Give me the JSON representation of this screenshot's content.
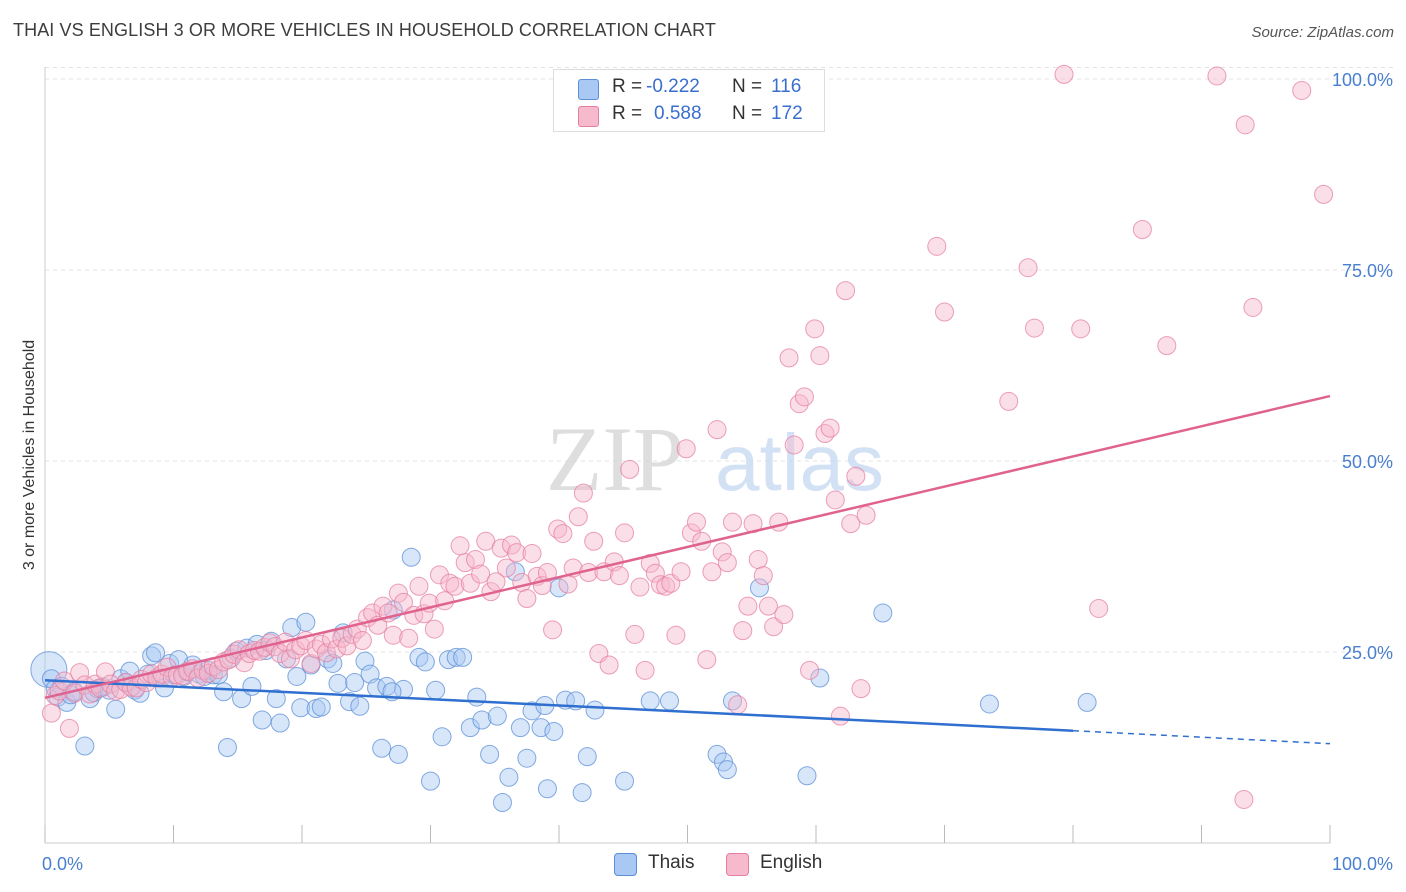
{
  "title": "THAI VS ENGLISH 3 OR MORE VEHICLES IN HOUSEHOLD CORRELATION CHART",
  "source": "Source: ZipAtlas.com",
  "watermark": {
    "zip": "ZIP",
    "atlas": "atlas"
  },
  "legend": {
    "rows": [
      {
        "r_label": "R =",
        "r_value": "-0.222",
        "n_label": "N =",
        "n_value": "116",
        "color": "#a9c8f3"
      },
      {
        "r_label": "R =",
        "r_value": "0.588",
        "n_label": "N =",
        "n_value": "172",
        "color": "#f7b9cc"
      }
    ]
  },
  "bottom_legend": [
    {
      "label": "Thais",
      "color": "#a9c8f3"
    },
    {
      "label": "English",
      "color": "#f7b9cc"
    }
  ],
  "colors": {
    "thais_fill": "#a9c8f3",
    "thais_stroke": "#5b8fd6",
    "thais_line": "#2f6fd0",
    "english_fill": "#f7b9cc",
    "english_stroke": "#e57fa0",
    "english_line": "#e0628e",
    "tick_label": "#4a7fd0",
    "grid": "#e3e3e3"
  },
  "chart_data": {
    "type": "scatter",
    "title": "THAI VS ENGLISH 3 OR MORE VEHICLES IN HOUSEHOLD CORRELATION CHART",
    "xlabel": "",
    "ylabel": "3 or more Vehicles in Household",
    "xlim": [
      0,
      100
    ],
    "ylim": [
      0,
      102
    ],
    "x_tick_labels": [
      "0.0%",
      "100.0%"
    ],
    "y_tick_labels": [
      "25.0%",
      "50.0%",
      "75.0%",
      "100.0%"
    ],
    "y_ticks": [
      25,
      50,
      75,
      100
    ],
    "grid": true,
    "series": [
      {
        "name": "Thais",
        "r": -0.222,
        "n": 116,
        "trend": {
          "x0": 0,
          "y0": 21.3,
          "x1": 80,
          "y1": 14.7,
          "dashed_to_x": 100,
          "dashed_to_y": 13.0
        },
        "points": [
          [
            0.3,
            22.7
          ],
          [
            0.5,
            21.5
          ],
          [
            0.8,
            20.2
          ],
          [
            1.0,
            19.1
          ],
          [
            1.3,
            20.5
          ],
          [
            1.7,
            18.4
          ],
          [
            2.0,
            19.4
          ],
          [
            2.3,
            19.8
          ],
          [
            3.1,
            12.7
          ],
          [
            3.5,
            18.9
          ],
          [
            3.8,
            19.7
          ],
          [
            4.1,
            20.2
          ],
          [
            4.5,
            20.4
          ],
          [
            5.0,
            20.0
          ],
          [
            5.5,
            17.5
          ],
          [
            5.9,
            21.5
          ],
          [
            6.3,
            21.0
          ],
          [
            6.6,
            22.5
          ],
          [
            7.0,
            20.0
          ],
          [
            7.4,
            19.6
          ],
          [
            8.0,
            22.1
          ],
          [
            8.3,
            24.5
          ],
          [
            8.6,
            24.9
          ],
          [
            9.0,
            21.6
          ],
          [
            9.3,
            20.3
          ],
          [
            9.7,
            23.5
          ],
          [
            10.1,
            22.0
          ],
          [
            10.4,
            24.0
          ],
          [
            10.8,
            21.8
          ],
          [
            11.1,
            22.4
          ],
          [
            11.5,
            23.3
          ],
          [
            12.0,
            22.1
          ],
          [
            12.4,
            21.8
          ],
          [
            12.7,
            22.6
          ],
          [
            13.1,
            22.0
          ],
          [
            13.5,
            22.0
          ],
          [
            13.9,
            19.8
          ],
          [
            14.2,
            12.5
          ],
          [
            14.5,
            24.2
          ],
          [
            14.9,
            25.1
          ],
          [
            15.3,
            18.9
          ],
          [
            15.7,
            25.5
          ],
          [
            16.1,
            20.5
          ],
          [
            16.5,
            26.0
          ],
          [
            16.9,
            16.1
          ],
          [
            17.2,
            25.2
          ],
          [
            17.6,
            26.4
          ],
          [
            18.0,
            18.9
          ],
          [
            18.3,
            15.7
          ],
          [
            18.8,
            24.1
          ],
          [
            19.2,
            28.2
          ],
          [
            19.6,
            21.8
          ],
          [
            19.9,
            17.7
          ],
          [
            20.3,
            28.9
          ],
          [
            20.7,
            23.3
          ],
          [
            21.1,
            17.6
          ],
          [
            21.5,
            17.8
          ],
          [
            22.0,
            24.1
          ],
          [
            22.4,
            23.5
          ],
          [
            22.8,
            20.9
          ],
          [
            23.2,
            27.5
          ],
          [
            23.7,
            18.5
          ],
          [
            24.1,
            21.0
          ],
          [
            24.5,
            17.9
          ],
          [
            24.9,
            23.8
          ],
          [
            25.3,
            22.1
          ],
          [
            25.8,
            20.3
          ],
          [
            26.2,
            12.4
          ],
          [
            26.6,
            20.5
          ],
          [
            27.1,
            30.5
          ],
          [
            27.5,
            11.6
          ],
          [
            27.9,
            20.1
          ],
          [
            28.5,
            37.4
          ],
          [
            29.1,
            24.3
          ],
          [
            29.6,
            23.7
          ],
          [
            30.0,
            8.1
          ],
          [
            30.4,
            20.0
          ],
          [
            30.9,
            13.9
          ],
          [
            31.4,
            24.0
          ],
          [
            32.0,
            24.3
          ],
          [
            32.5,
            24.3
          ],
          [
            33.1,
            15.1
          ],
          [
            33.6,
            19.1
          ],
          [
            34.0,
            16.1
          ],
          [
            34.6,
            11.6
          ],
          [
            35.2,
            16.6
          ],
          [
            35.6,
            5.3
          ],
          [
            36.1,
            8.6
          ],
          [
            36.6,
            35.5
          ],
          [
            37.0,
            15.1
          ],
          [
            37.5,
            11.1
          ],
          [
            37.9,
            17.3
          ],
          [
            38.6,
            15.1
          ],
          [
            39.1,
            7.1
          ],
          [
            39.6,
            14.6
          ],
          [
            40.0,
            33.4
          ],
          [
            40.5,
            18.7
          ],
          [
            41.3,
            18.6
          ],
          [
            41.8,
            6.6
          ],
          [
            42.2,
            11.3
          ],
          [
            42.8,
            17.4
          ],
          [
            45.1,
            8.1
          ],
          [
            47.1,
            18.6
          ],
          [
            48.6,
            18.6
          ],
          [
            52.3,
            11.6
          ],
          [
            52.8,
            10.6
          ],
          [
            53.1,
            9.6
          ],
          [
            53.5,
            18.6
          ],
          [
            55.6,
            33.4
          ],
          [
            59.3,
            8.8
          ],
          [
            60.3,
            21.6
          ],
          [
            65.2,
            30.1
          ],
          [
            81.1,
            18.4
          ],
          [
            73.5,
            18.2
          ],
          [
            38.9,
            18.0
          ],
          [
            27.0,
            19.8
          ]
        ]
      },
      {
        "name": "English",
        "r": 0.588,
        "n": 172,
        "trend": {
          "x0": 0,
          "y0": 19.0,
          "x1": 100,
          "y1": 58.5
        },
        "points": [
          [
            0.5,
            17.0
          ],
          [
            0.8,
            19.3
          ],
          [
            1.1,
            19.9
          ],
          [
            1.5,
            21.2
          ],
          [
            1.9,
            15.0
          ],
          [
            2.3,
            19.6
          ],
          [
            2.7,
            22.3
          ],
          [
            3.1,
            20.7
          ],
          [
            3.5,
            19.5
          ],
          [
            3.9,
            20.8
          ],
          [
            4.3,
            20.3
          ],
          [
            4.7,
            22.4
          ],
          [
            5.1,
            20.8
          ],
          [
            5.5,
            19.9
          ],
          [
            5.9,
            20.1
          ],
          [
            6.3,
            21.0
          ],
          [
            6.7,
            20.4
          ],
          [
            7.1,
            20.3
          ],
          [
            7.5,
            21.4
          ],
          [
            7.9,
            21.0
          ],
          [
            8.3,
            22.1
          ],
          [
            8.7,
            21.6
          ],
          [
            9.1,
            22.1
          ],
          [
            9.5,
            23.0
          ],
          [
            9.9,
            21.7
          ],
          [
            10.3,
            22.0
          ],
          [
            10.7,
            21.9
          ],
          [
            11.1,
            22.5
          ],
          [
            11.5,
            22.8
          ],
          [
            11.9,
            21.6
          ],
          [
            12.3,
            22.6
          ],
          [
            12.7,
            22.2
          ],
          [
            13.1,
            23.1
          ],
          [
            13.5,
            22.7
          ],
          [
            13.9,
            23.7
          ],
          [
            14.3,
            24.0
          ],
          [
            14.7,
            24.7
          ],
          [
            15.1,
            25.3
          ],
          [
            15.5,
            23.6
          ],
          [
            15.9,
            24.8
          ],
          [
            16.3,
            25.2
          ],
          [
            16.7,
            25.1
          ],
          [
            17.1,
            25.6
          ],
          [
            17.5,
            26.2
          ],
          [
            17.9,
            25.7
          ],
          [
            18.3,
            24.8
          ],
          [
            18.7,
            26.3
          ],
          [
            19.1,
            24.1
          ],
          [
            19.5,
            25.3
          ],
          [
            19.9,
            25.8
          ],
          [
            20.3,
            26.5
          ],
          [
            20.7,
            23.5
          ],
          [
            21.1,
            25.4
          ],
          [
            21.5,
            26.0
          ],
          [
            21.9,
            24.9
          ],
          [
            22.3,
            26.7
          ],
          [
            22.7,
            25.4
          ],
          [
            23.1,
            26.8
          ],
          [
            23.5,
            25.8
          ],
          [
            23.9,
            27.3
          ],
          [
            24.3,
            28.0
          ],
          [
            24.7,
            26.5
          ],
          [
            25.1,
            29.5
          ],
          [
            25.5,
            30.1
          ],
          [
            25.9,
            28.5
          ],
          [
            26.3,
            31.0
          ],
          [
            26.7,
            30.1
          ],
          [
            27.1,
            27.2
          ],
          [
            27.5,
            32.7
          ],
          [
            27.9,
            31.5
          ],
          [
            28.3,
            26.8
          ],
          [
            28.7,
            29.8
          ],
          [
            29.1,
            33.6
          ],
          [
            29.5,
            30.0
          ],
          [
            29.9,
            31.4
          ],
          [
            30.3,
            28.0
          ],
          [
            30.7,
            35.1
          ],
          [
            31.1,
            31.7
          ],
          [
            31.5,
            34.0
          ],
          [
            31.9,
            33.6
          ],
          [
            32.3,
            38.9
          ],
          [
            32.7,
            36.7
          ],
          [
            33.1,
            34.0
          ],
          [
            33.5,
            37.1
          ],
          [
            33.9,
            35.2
          ],
          [
            34.3,
            39.5
          ],
          [
            34.7,
            32.9
          ],
          [
            35.1,
            34.2
          ],
          [
            35.5,
            38.6
          ],
          [
            35.9,
            36.0
          ],
          [
            36.3,
            39.0
          ],
          [
            36.7,
            38.0
          ],
          [
            37.1,
            34.1
          ],
          [
            37.5,
            32.0
          ],
          [
            37.9,
            37.9
          ],
          [
            38.3,
            34.9
          ],
          [
            38.7,
            33.7
          ],
          [
            39.1,
            35.4
          ],
          [
            39.5,
            27.9
          ],
          [
            39.9,
            41.1
          ],
          [
            40.3,
            40.5
          ],
          [
            40.7,
            33.9
          ],
          [
            41.1,
            36.0
          ],
          [
            41.5,
            42.7
          ],
          [
            41.9,
            45.8
          ],
          [
            42.3,
            35.4
          ],
          [
            42.7,
            39.5
          ],
          [
            43.1,
            24.8
          ],
          [
            43.5,
            35.5
          ],
          [
            43.9,
            23.3
          ],
          [
            44.3,
            36.8
          ],
          [
            44.7,
            35.0
          ],
          [
            45.1,
            40.6
          ],
          [
            45.5,
            48.9
          ],
          [
            45.9,
            27.3
          ],
          [
            46.3,
            33.5
          ],
          [
            46.7,
            22.6
          ],
          [
            47.1,
            36.6
          ],
          [
            47.5,
            35.3
          ],
          [
            47.9,
            33.8
          ],
          [
            48.3,
            33.6
          ],
          [
            48.7,
            34.0
          ],
          [
            49.1,
            27.2
          ],
          [
            49.5,
            35.5
          ],
          [
            49.9,
            51.6
          ],
          [
            50.3,
            40.6
          ],
          [
            50.7,
            42.0
          ],
          [
            51.1,
            39.5
          ],
          [
            51.5,
            24.0
          ],
          [
            51.9,
            35.5
          ],
          [
            52.3,
            54.1
          ],
          [
            52.7,
            38.1
          ],
          [
            53.1,
            36.7
          ],
          [
            53.5,
            42.0
          ],
          [
            53.9,
            18.1
          ],
          [
            54.3,
            27.8
          ],
          [
            54.7,
            31.0
          ],
          [
            55.1,
            41.8
          ],
          [
            55.5,
            37.1
          ],
          [
            55.9,
            35.0
          ],
          [
            56.3,
            31.0
          ],
          [
            56.7,
            28.3
          ],
          [
            57.1,
            42.0
          ],
          [
            57.5,
            29.9
          ],
          [
            57.9,
            63.5
          ],
          [
            58.3,
            52.1
          ],
          [
            58.7,
            57.5
          ],
          [
            59.1,
            58.4
          ],
          [
            59.5,
            22.6
          ],
          [
            59.9,
            67.3
          ],
          [
            60.3,
            63.8
          ],
          [
            60.7,
            53.6
          ],
          [
            61.1,
            54.3
          ],
          [
            61.5,
            44.9
          ],
          [
            61.9,
            16.6
          ],
          [
            62.3,
            72.3
          ],
          [
            62.7,
            41.8
          ],
          [
            63.1,
            48.0
          ],
          [
            63.5,
            20.2
          ],
          [
            63.9,
            42.9
          ],
          [
            69.4,
            78.1
          ],
          [
            70.0,
            69.5
          ],
          [
            75.0,
            57.8
          ],
          [
            76.5,
            75.3
          ],
          [
            77.0,
            67.4
          ],
          [
            79.3,
            100.6
          ],
          [
            80.6,
            67.3
          ],
          [
            82.0,
            30.7
          ],
          [
            85.4,
            80.3
          ],
          [
            87.3,
            65.1
          ],
          [
            91.2,
            100.4
          ],
          [
            93.4,
            94.0
          ],
          [
            94.0,
            70.1
          ],
          [
            97.8,
            98.5
          ],
          [
            99.5,
            84.9
          ],
          [
            93.3,
            5.7
          ]
        ]
      }
    ]
  }
}
